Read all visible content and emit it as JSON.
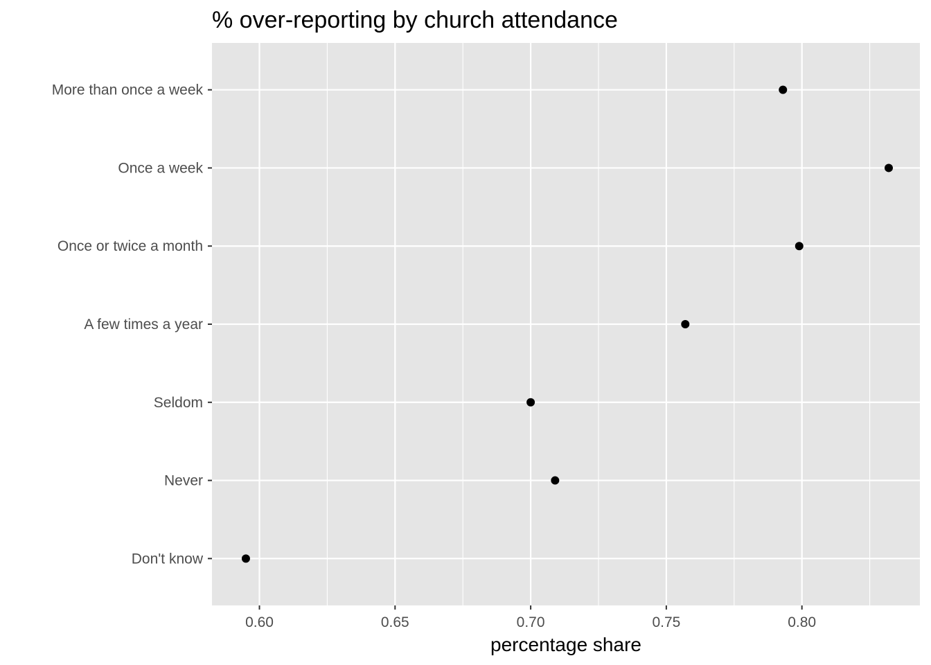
{
  "chart_data": {
    "type": "scatter",
    "title": "% over-reporting by church attendance",
    "xlabel": "percentage share",
    "ylabel": "",
    "categories": [
      "More than once a week",
      "Once a week",
      "Once or twice a month",
      "A few times a year",
      "Seldom",
      "Never",
      "Don't know"
    ],
    "values": [
      0.793,
      0.832,
      0.799,
      0.757,
      0.7,
      0.709,
      0.595
    ],
    "xlim": [
      0.5825,
      0.8435
    ],
    "xticks": [
      0.6,
      0.65,
      0.7,
      0.75,
      0.8
    ],
    "xtick_labels": [
      "0.60",
      "0.65",
      "0.70",
      "0.75",
      "0.80"
    ],
    "grid": true,
    "legend": "none",
    "colors": {
      "panel": "#e5e5e5",
      "grid": "#ffffff",
      "point": "#000000",
      "tick_text": "#4d4d4d"
    }
  }
}
